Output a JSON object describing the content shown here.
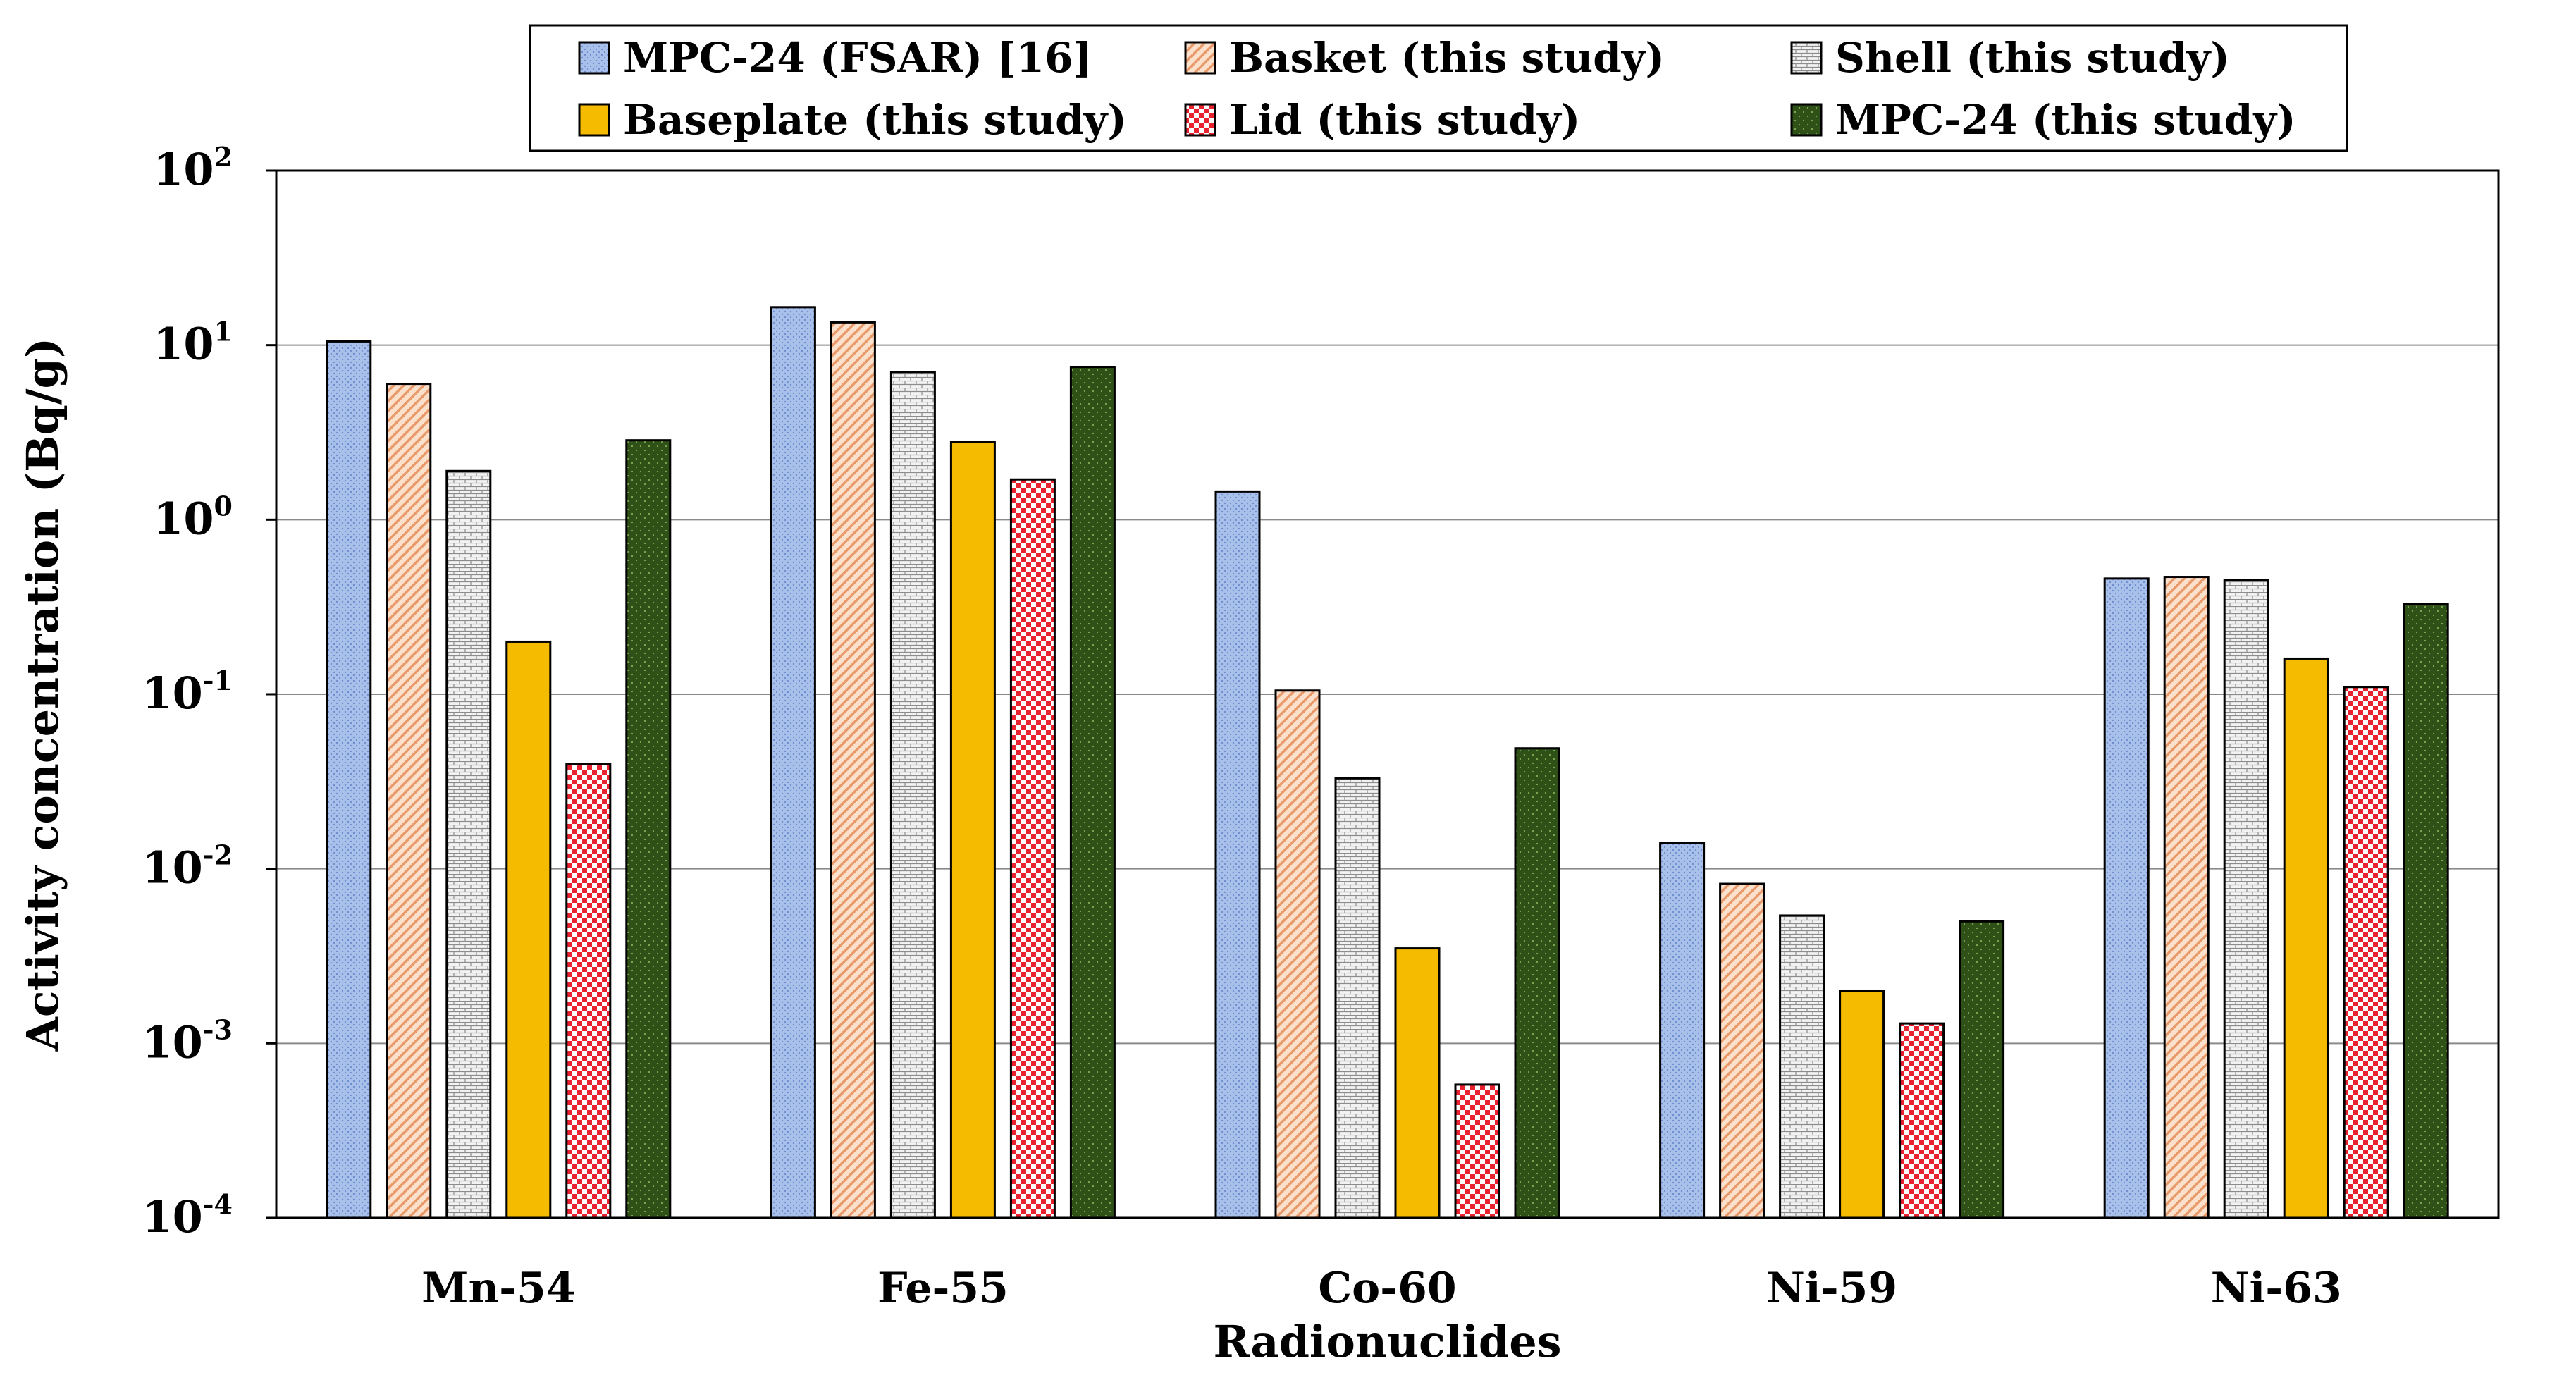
{
  "chart_data": {
    "type": "bar",
    "scale": "log",
    "title": "",
    "xlabel": "Radionuclides",
    "ylabel": "Activity concentration (Bq/g)",
    "ylim": [
      0.0001,
      100
    ],
    "y_ticks": [
      {
        "base": "10",
        "exp": "2"
      },
      {
        "base": "10",
        "exp": "1"
      },
      {
        "base": "10",
        "exp": "0"
      },
      {
        "base": "10",
        "exp": "-1"
      },
      {
        "base": "10",
        "exp": "-2"
      },
      {
        "base": "10",
        "exp": "-3"
      },
      {
        "base": "10",
        "exp": "-4"
      }
    ],
    "categories": [
      "Mn-54",
      "Fe-55",
      "Co-60",
      "Ni-59",
      "Ni-63"
    ],
    "legend_position": "top-center",
    "grid": "horizontal",
    "series": [
      {
        "name": "MPC-24 (FSAR) [16]",
        "color": "#a9c1ea",
        "pattern": "dots-blue",
        "values": [
          10.5,
          16.5,
          1.45,
          0.014,
          0.46
        ]
      },
      {
        "name": "Basket (this study)",
        "color": "#f5c6a5",
        "pattern": "diag-orange",
        "values": [
          6.0,
          13.5,
          0.105,
          0.0082,
          0.47
        ]
      },
      {
        "name": "Shell (this study)",
        "color": "#e0e0e0",
        "pattern": "brick-gray",
        "values": [
          1.9,
          7.0,
          0.033,
          0.0054,
          0.45
        ]
      },
      {
        "name": "Baseplate (this study)",
        "color": "#f5bb00",
        "pattern": "solid-gold",
        "values": [
          0.2,
          2.8,
          0.0035,
          0.002,
          0.16
        ]
      },
      {
        "name": "Lid (this study)",
        "color": "#e8222e",
        "pattern": "checker-red",
        "values": [
          0.04,
          1.7,
          0.00058,
          0.0013,
          0.11
        ]
      },
      {
        "name": "MPC-24 (this study)",
        "color": "#2f5118",
        "pattern": "dots-green",
        "values": [
          2.85,
          7.5,
          0.049,
          0.005,
          0.33
        ]
      }
    ]
  }
}
